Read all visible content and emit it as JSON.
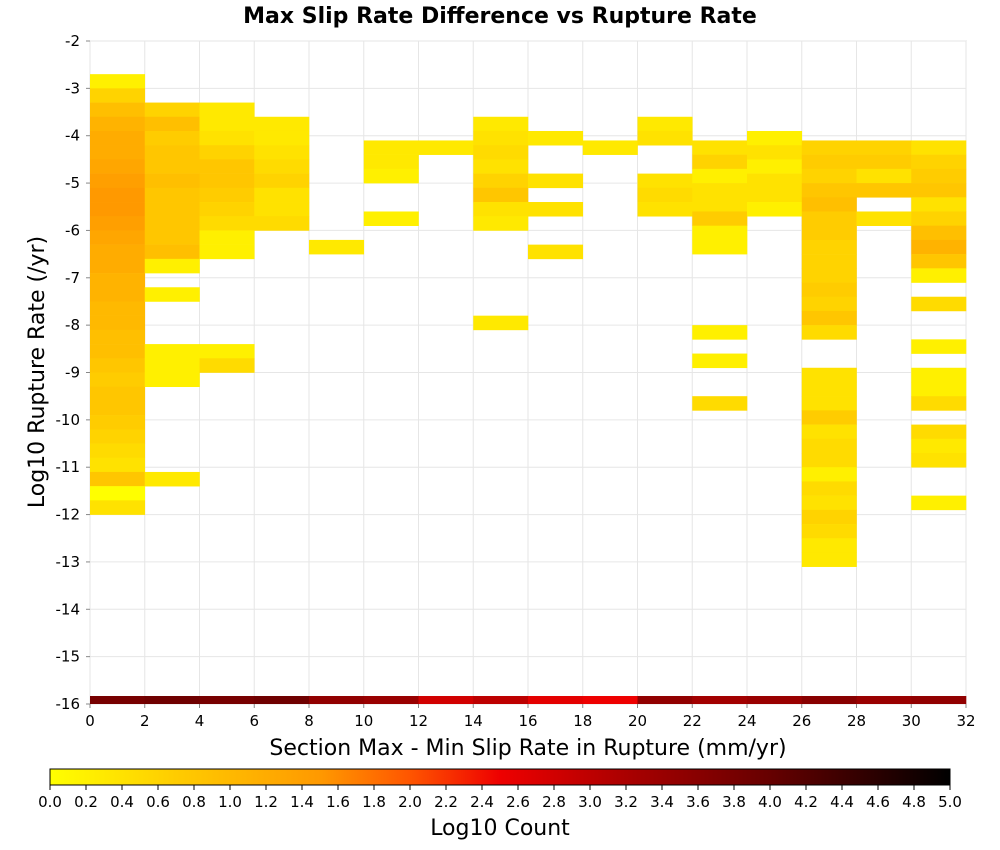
{
  "chart_data": {
    "type": "heatmap",
    "title": "Max Slip Rate Difference vs Rupture Rate",
    "xlabel": "Section Max - Min Slip Rate in Rupture (mm/yr)",
    "ylabel": "Log10 Rupture Rate (/yr)",
    "xlim": [
      0,
      32
    ],
    "ylim": [
      -16,
      -2
    ],
    "x_ticks": [
      "0",
      "2",
      "4",
      "6",
      "8",
      "10",
      "12",
      "14",
      "16",
      "18",
      "20",
      "22",
      "24",
      "26",
      "28",
      "30",
      "32"
    ],
    "y_ticks": [
      "-2",
      "-3",
      "-4",
      "-5",
      "-6",
      "-7",
      "-8",
      "-9",
      "-10",
      "-11",
      "-12",
      "-13",
      "-14",
      "-15",
      "-16"
    ],
    "x_bin_width": 2,
    "y_bin_height": 0.3,
    "grid": true,
    "colorbar": {
      "label": "Log10 Count",
      "range": [
        0,
        5
      ],
      "ticks": [
        "0.0",
        "0.2",
        "0.4",
        "0.6",
        "0.8",
        "1.0",
        "1.2",
        "1.4",
        "1.6",
        "1.8",
        "2.0",
        "2.2",
        "2.4",
        "2.6",
        "2.8",
        "3.0",
        "3.2",
        "3.4",
        "3.6",
        "3.8",
        "4.0",
        "4.2",
        "4.4",
        "4.6",
        "4.8",
        "5.0"
      ],
      "colors": [
        "#ffff00",
        "#ffcc00",
        "#ff9900",
        "#ff5500",
        "#ee0000",
        "#aa0000",
        "#660000",
        "#000000"
      ]
    },
    "columns": [
      {
        "x": 0,
        "y_top": -2.7,
        "values": [
          0.2,
          0.6,
          0.9,
          1.1,
          1.2,
          1.2,
          1.3,
          1.4,
          1.5,
          1.5,
          1.4,
          1.3,
          1.2,
          1.2,
          1.1,
          1.1,
          1.0,
          1.0,
          0.9,
          0.9,
          0.8,
          0.7,
          0.8,
          0.8,
          0.7,
          0.6,
          0.5,
          0.4,
          0.8,
          0.0,
          0.4
        ]
      },
      {
        "x": 2,
        "y_top": -3.3,
        "values": [
          0.6,
          0.9,
          0.7,
          0.8,
          0.8,
          0.9,
          0.8,
          0.8,
          0.8,
          0.8,
          0.9,
          0.2,
          null,
          0.2,
          null,
          null,
          null,
          0.2,
          0.2,
          0.2,
          null,
          null,
          null,
          null,
          null,
          null,
          0.3
        ]
      },
      {
        "x": 4,
        "y_top": -3.3,
        "values": [
          0.3,
          0.3,
          0.4,
          0.6,
          0.8,
          0.8,
          0.7,
          0.6,
          0.5,
          0.2,
          0.2,
          null,
          null,
          null,
          null,
          null,
          null,
          0.2,
          0.5
        ]
      },
      {
        "x": 6,
        "y_top": -3.6,
        "values": [
          0.3,
          0.3,
          0.4,
          0.5,
          0.6,
          0.4,
          0.4,
          0.5
        ]
      },
      {
        "x": 8,
        "y_top": -6.2,
        "values": [
          0.3
        ]
      },
      {
        "x": 10,
        "y_top": -4.1,
        "values": [
          0.3,
          0.3,
          0.2,
          null,
          null,
          0.2
        ]
      },
      {
        "x": 12,
        "y_top": -4.1,
        "values": [
          0.3
        ]
      },
      {
        "x": 14,
        "y_top": -3.6,
        "values": [
          0.3,
          0.4,
          0.5,
          0.4,
          0.6,
          0.8,
          0.4,
          0.3,
          null,
          null,
          null,
          null,
          null,
          null,
          0.3
        ]
      },
      {
        "x": 16,
        "y_top": -3.9,
        "values": [
          0.3,
          null,
          null,
          0.4,
          null,
          0.4,
          null,
          null,
          0.4
        ]
      },
      {
        "x": 18,
        "y_top": -4.1,
        "values": [
          0.3
        ]
      },
      {
        "x": 20,
        "y_top": -3.6,
        "values": [
          0.3,
          0.4,
          null,
          null,
          0.4,
          0.5,
          0.4
        ]
      },
      {
        "x": 22,
        "y_top": -4.1,
        "values": [
          0.4,
          0.6,
          0.2,
          0.4,
          0.4,
          0.7,
          0.2,
          0.2,
          null,
          null,
          null,
          null,
          null,
          0.2,
          null,
          0.2,
          null,
          null,
          0.5
        ]
      },
      {
        "x": 24,
        "y_top": -3.9,
        "values": [
          0.2,
          0.4,
          0.2,
          0.4,
          0.4,
          0.2
        ]
      },
      {
        "x": 26,
        "y_top": -4.1,
        "values": [
          0.6,
          0.7,
          0.6,
          0.8,
          0.9,
          0.7,
          0.7,
          0.6,
          0.6,
          0.6,
          0.7,
          0.6,
          0.8,
          0.5,
          null,
          null,
          0.4,
          0.4,
          0.4,
          0.7,
          0.4,
          0.5,
          0.5,
          0.2,
          0.5,
          0.4,
          0.6,
          0.5,
          0.3,
          0.3
        ]
      },
      {
        "x": 28,
        "y_top": -4.1,
        "values": [
          0.6,
          0.7,
          0.4,
          0.8,
          null,
          0.4
        ]
      },
      {
        "x": 30,
        "y_top": -4.1,
        "values": [
          0.4,
          0.6,
          0.7,
          0.8,
          0.4,
          0.6,
          0.9,
          1.1,
          0.8,
          0.2,
          null,
          0.5,
          null,
          null,
          0.2,
          null,
          0.2,
          0.2,
          0.5,
          null,
          0.5,
          0.3,
          0.4,
          null,
          null,
          0.2
        ]
      }
    ],
    "bottom_row": {
      "y": -16,
      "values": [
        3.8,
        3.9,
        3.8,
        3.9,
        3.5,
        3.4,
        2.8,
        3.0,
        2.6,
        2.5,
        3.5,
        3.3,
        3.4,
        3.6,
        3.4,
        3.5
      ]
    }
  }
}
